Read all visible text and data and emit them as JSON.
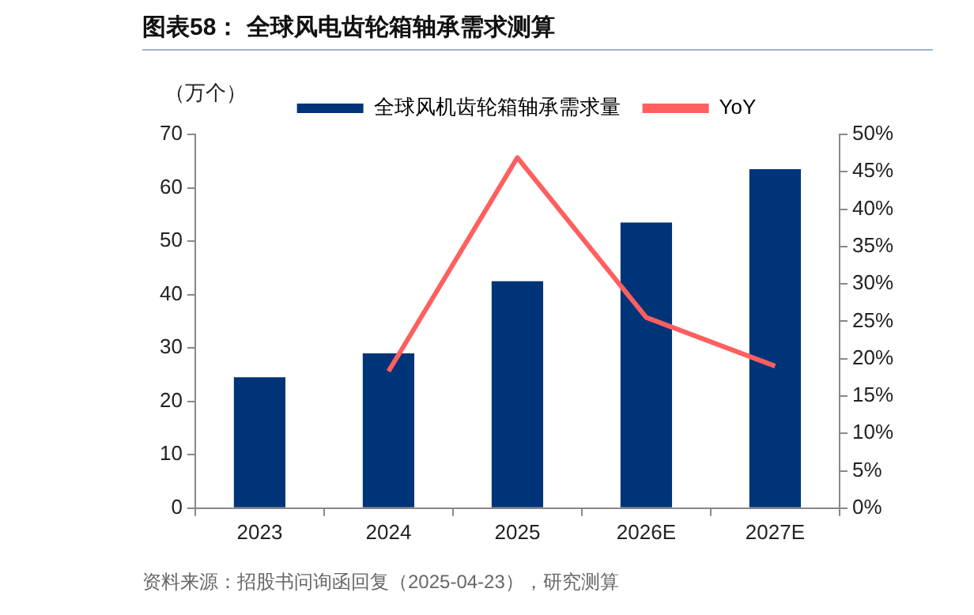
{
  "chart_data": {
    "type": "bar",
    "title": "图表58：  全球风电齿轮箱轴承需求测算",
    "ylabel": "（万个）",
    "categories": [
      "2023",
      "2024",
      "2025",
      "2026E",
      "2027E"
    ],
    "series": [
      {
        "name": "全球风机齿轮箱轴承需求量",
        "color": "#003478",
        "values": [
          24.5,
          29,
          42.5,
          53.5,
          63.5
        ]
      },
      {
        "name": "YoY",
        "type": "line",
        "axis": "y2",
        "color": "#ff5f5f",
        "values": [
          null,
          18.3,
          46.9,
          25.5,
          19.0
        ]
      }
    ],
    "ylim": [
      0,
      70
    ],
    "yticks": [
      0,
      10,
      20,
      30,
      40,
      50,
      60,
      70
    ],
    "y2lim": [
      0,
      50
    ],
    "y2ticks": [
      {
        "value": 0,
        "label": "0%"
      },
      {
        "value": 5,
        "label": "5%"
      },
      {
        "value": 10,
        "label": "10%"
      },
      {
        "value": 15,
        "label": "15%"
      },
      {
        "value": 20,
        "label": "20%"
      },
      {
        "value": 25,
        "label": "25%"
      },
      {
        "value": 30,
        "label": "30%"
      },
      {
        "value": 35,
        "label": "35%"
      },
      {
        "value": 40,
        "label": "40%"
      },
      {
        "value": 45,
        "label": "45%"
      },
      {
        "value": 50,
        "label": "50%"
      }
    ],
    "grid": false,
    "legend": "top",
    "marker": "none",
    "annotations": [
      "资料来源：招股书问询函回复（2025-04-23），研究测算"
    ]
  }
}
